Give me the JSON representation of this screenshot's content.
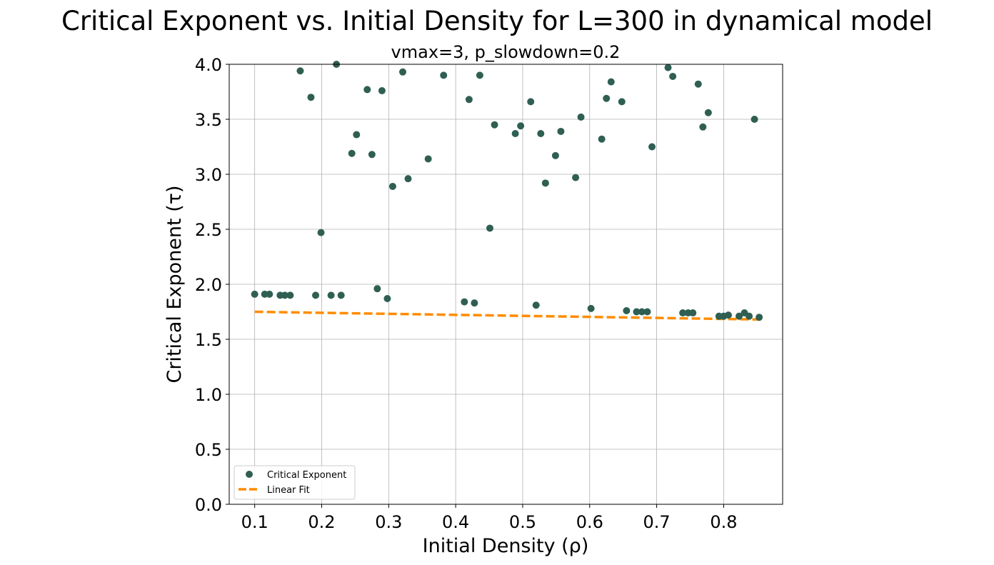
{
  "figure": {
    "suptitle": "Critical Exponent vs. Initial Density for L=300 in dynamical model"
  },
  "chart_data": {
    "type": "scatter",
    "title": "vmax=3, p_slowdown=0.2",
    "xlabel": "Initial Density (ρ)",
    "ylabel": "Critical Exponent (τ)",
    "xlim": [
      0.062,
      0.888
    ],
    "ylim": [
      0.0,
      4.0
    ],
    "xticks": [
      "0.1",
      "0.2",
      "0.3",
      "0.4",
      "0.5",
      "0.6",
      "0.7",
      "0.8"
    ],
    "xtick_values": [
      0.1,
      0.2,
      0.3,
      0.4,
      0.5,
      0.6,
      0.7,
      0.8
    ],
    "yticks": [
      "0.0",
      "0.5",
      "1.0",
      "1.5",
      "2.0",
      "2.5",
      "3.0",
      "3.5",
      "4.0"
    ],
    "ytick_values": [
      0.0,
      0.5,
      1.0,
      1.5,
      2.0,
      2.5,
      3.0,
      3.5,
      4.0
    ],
    "grid": true,
    "legend_position": "lower-left",
    "series": [
      {
        "name": "Critical Exponent",
        "kind": "scatter",
        "color": "#2f5f52",
        "points": [
          [
            0.1,
            1.91
          ],
          [
            0.115,
            1.91
          ],
          [
            0.122,
            1.91
          ],
          [
            0.138,
            1.9
          ],
          [
            0.145,
            1.9
          ],
          [
            0.153,
            1.9
          ],
          [
            0.168,
            3.94
          ],
          [
            0.184,
            3.7
          ],
          [
            0.191,
            1.9
          ],
          [
            0.199,
            2.47
          ],
          [
            0.214,
            1.9
          ],
          [
            0.222,
            4.0
          ],
          [
            0.229,
            1.9
          ],
          [
            0.245,
            3.19
          ],
          [
            0.252,
            3.36
          ],
          [
            0.268,
            3.77
          ],
          [
            0.275,
            3.18
          ],
          [
            0.283,
            1.96
          ],
          [
            0.29,
            3.76
          ],
          [
            0.298,
            1.87
          ],
          [
            0.306,
            2.89
          ],
          [
            0.321,
            3.93
          ],
          [
            0.329,
            2.96
          ],
          [
            0.359,
            3.14
          ],
          [
            0.382,
            3.9
          ],
          [
            0.413,
            1.84
          ],
          [
            0.42,
            3.68
          ],
          [
            0.428,
            1.83
          ],
          [
            0.436,
            3.9
          ],
          [
            0.451,
            2.51
          ],
          [
            0.458,
            3.45
          ],
          [
            0.489,
            3.37
          ],
          [
            0.497,
            3.44
          ],
          [
            0.512,
            3.66
          ],
          [
            0.52,
            1.81
          ],
          [
            0.527,
            3.37
          ],
          [
            0.534,
            2.92
          ],
          [
            0.549,
            3.17
          ],
          [
            0.557,
            3.39
          ],
          [
            0.579,
            2.97
          ],
          [
            0.587,
            3.52
          ],
          [
            0.602,
            1.78
          ],
          [
            0.618,
            3.32
          ],
          [
            0.625,
            3.69
          ],
          [
            0.632,
            3.84
          ],
          [
            0.648,
            3.66
          ],
          [
            0.655,
            1.76
          ],
          [
            0.67,
            1.75
          ],
          [
            0.678,
            1.75
          ],
          [
            0.686,
            1.75
          ],
          [
            0.693,
            3.25
          ],
          [
            0.717,
            3.97
          ],
          [
            0.724,
            3.89
          ],
          [
            0.739,
            1.74
          ],
          [
            0.747,
            1.74
          ],
          [
            0.754,
            1.74
          ],
          [
            0.762,
            3.82
          ],
          [
            0.769,
            3.43
          ],
          [
            0.777,
            3.56
          ],
          [
            0.793,
            1.71
          ],
          [
            0.8,
            1.71
          ],
          [
            0.807,
            1.72
          ],
          [
            0.823,
            1.71
          ],
          [
            0.831,
            1.74
          ],
          [
            0.838,
            1.71
          ],
          [
            0.846,
            3.5
          ],
          [
            0.853,
            1.7
          ]
        ]
      },
      {
        "name": "Linear Fit",
        "kind": "line",
        "style": "dashed",
        "color": "#ff8c00",
        "points": [
          [
            0.1,
            1.75
          ],
          [
            0.853,
            1.68
          ]
        ]
      }
    ]
  }
}
